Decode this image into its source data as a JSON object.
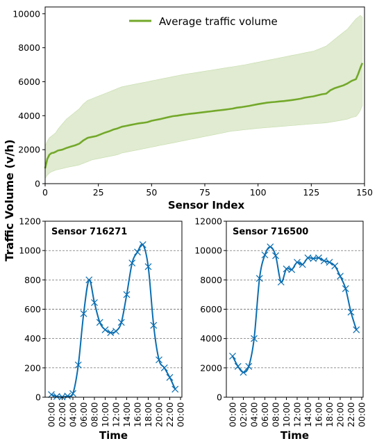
{
  "figure": {
    "ylabel": "Traffic Volume (v/h)"
  },
  "chart_data": [
    {
      "type": "area",
      "xlabel": "Sensor Index",
      "xlim": [
        0,
        150
      ],
      "ylim": [
        0,
        10400
      ],
      "xticks": [
        "0",
        "25",
        "50",
        "75",
        "100",
        "125",
        "150"
      ],
      "yticks": [
        "0",
        "2000",
        "4000",
        "6000",
        "8000",
        "10000"
      ],
      "legend": {
        "label": "Average traffic volume",
        "placement": "top-center"
      },
      "color": "#73a82a",
      "band_color": "#e0ebd1",
      "series": [
        {
          "name": "Average traffic volume",
          "x": [
            0,
            1,
            2,
            3,
            4,
            5,
            6,
            8,
            10,
            12,
            14,
            16,
            18,
            20,
            22,
            24,
            26,
            28,
            30,
            32,
            34,
            36,
            38,
            40,
            42,
            44,
            46,
            48,
            50,
            52,
            54,
            56,
            58,
            60,
            62,
            64,
            66,
            68,
            70,
            72,
            74,
            76,
            78,
            80,
            82,
            84,
            86,
            88,
            90,
            92,
            94,
            96,
            98,
            100,
            102,
            104,
            106,
            108,
            110,
            112,
            114,
            116,
            118,
            120,
            122,
            124,
            126,
            128,
            130,
            132,
            134,
            136,
            138,
            140,
            142,
            144,
            146,
            147,
            148,
            149
          ],
          "mean": [
            900,
            1450,
            1700,
            1800,
            1820,
            1880,
            1950,
            2000,
            2100,
            2180,
            2250,
            2350,
            2550,
            2700,
            2750,
            2800,
            2900,
            3000,
            3080,
            3180,
            3250,
            3350,
            3400,
            3450,
            3500,
            3550,
            3580,
            3620,
            3700,
            3750,
            3800,
            3860,
            3920,
            3970,
            4000,
            4040,
            4080,
            4110,
            4140,
            4170,
            4200,
            4230,
            4260,
            4290,
            4320,
            4350,
            4380,
            4420,
            4470,
            4500,
            4540,
            4580,
            4630,
            4680,
            4720,
            4760,
            4790,
            4810,
            4840,
            4860,
            4890,
            4920,
            4960,
            5000,
            5060,
            5100,
            5140,
            5200,
            5260,
            5300,
            5500,
            5620,
            5700,
            5780,
            5900,
            6050,
            6150,
            6450,
            6800,
            7100
          ],
          "lower": [
            300,
            500,
            620,
            700,
            750,
            800,
            830,
            880,
            950,
            1000,
            1050,
            1100,
            1200,
            1300,
            1400,
            1450,
            1500,
            1550,
            1600,
            1650,
            1700,
            1800,
            1850,
            1900,
            1950,
            2000,
            2050,
            2100,
            2150,
            2200,
            2250,
            2300,
            2350,
            2400,
            2450,
            2500,
            2550,
            2600,
            2650,
            2700,
            2750,
            2800,
            2850,
            2900,
            2950,
            3000,
            3050,
            3100,
            3120,
            3150,
            3180,
            3200,
            3230,
            3260,
            3280,
            3300,
            3320,
            3340,
            3360,
            3380,
            3400,
            3420,
            3440,
            3460,
            3480,
            3500,
            3520,
            3540,
            3560,
            3580,
            3620,
            3660,
            3700,
            3750,
            3800,
            3900,
            3950,
            4100,
            4300,
            4600
          ],
          "upper": [
            2200,
            2500,
            2700,
            2800,
            2900,
            3000,
            3200,
            3500,
            3800,
            4000,
            4200,
            4400,
            4700,
            4900,
            5000,
            5100,
            5200,
            5300,
            5400,
            5500,
            5600,
            5700,
            5750,
            5800,
            5850,
            5900,
            5950,
            6000,
            6050,
            6100,
            6150,
            6200,
            6250,
            6300,
            6350,
            6400,
            6450,
            6480,
            6520,
            6560,
            6600,
            6640,
            6680,
            6720,
            6760,
            6800,
            6840,
            6880,
            6920,
            6960,
            7000,
            7050,
            7100,
            7150,
            7200,
            7250,
            7300,
            7350,
            7400,
            7450,
            7500,
            7550,
            7600,
            7650,
            7700,
            7750,
            7800,
            7900,
            8000,
            8100,
            8300,
            8500,
            8700,
            8900,
            9100,
            9400,
            9700,
            9800,
            9900,
            9800
          ]
        }
      ]
    },
    {
      "type": "line",
      "title": "Sensor 716271",
      "xlabel": "Time",
      "ylim": [
        0,
        1200
      ],
      "yticks": [
        "0",
        "200",
        "400",
        "600",
        "800",
        "1000",
        "1200"
      ],
      "xticks": [
        "00:00",
        "02:00",
        "04:00",
        "06:00",
        "08:00",
        "10:00",
        "12:00",
        "14:00",
        "16:00",
        "18:00",
        "20:00",
        "22:00",
        "00:00"
      ],
      "grid": "horizontal dashed",
      "color": "#0a6db0",
      "series": [
        {
          "x": [
            0,
            1,
            2,
            3,
            4,
            5,
            6,
            7,
            8,
            9,
            10,
            11,
            12,
            13,
            14,
            15,
            16,
            17,
            18,
            19,
            20,
            21,
            22,
            23
          ],
          "values": [
            18,
            5,
            2,
            8,
            25,
            220,
            570,
            800,
            645,
            510,
            460,
            440,
            450,
            510,
            700,
            915,
            990,
            1040,
            890,
            490,
            255,
            200,
            135,
            55
          ]
        }
      ]
    },
    {
      "type": "line",
      "title": "Sensor 716500",
      "xlabel": "Time",
      "ylim": [
        0,
        12000
      ],
      "yticks": [
        "0",
        "2000",
        "4000",
        "6000",
        "8000",
        "10000",
        "12000"
      ],
      "xticks": [
        "00:00",
        "02:00",
        "04:00",
        "06:00",
        "08:00",
        "10:00",
        "12:00",
        "14:00",
        "16:00",
        "18:00",
        "20:00",
        "22:00",
        "00:00"
      ],
      "grid": "horizontal dashed",
      "color": "#0a6db0",
      "series": [
        {
          "x": [
            0,
            1,
            2,
            3,
            4,
            5,
            6,
            7,
            8,
            9,
            10,
            11,
            12,
            13,
            14,
            15,
            16,
            17,
            18,
            19,
            20,
            21,
            22,
            23
          ],
          "values": [
            2800,
            2100,
            1700,
            2100,
            4000,
            8100,
            9700,
            10250,
            9650,
            7850,
            8750,
            8700,
            9200,
            9050,
            9500,
            9450,
            9500,
            9300,
            9200,
            8950,
            8250,
            7400,
            5800,
            4600
          ]
        }
      ]
    }
  ]
}
